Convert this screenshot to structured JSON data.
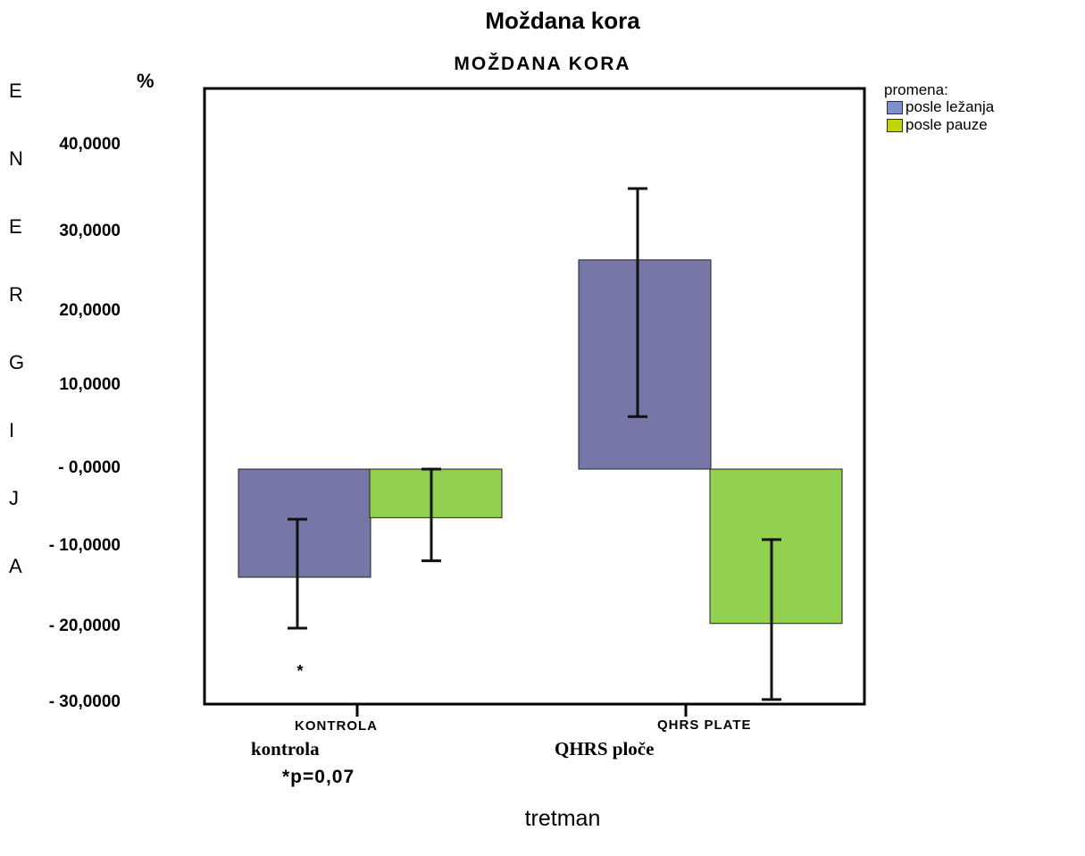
{
  "chart_data": {
    "type": "bar",
    "title": "Moždana kora",
    "subtitle": "MOŽDANA KORA",
    "ylabel_vertical": [
      "E",
      "N",
      "E",
      "R",
      "G",
      "I",
      "J",
      "A"
    ],
    "yunit": "%",
    "xlabel": "tretman",
    "ylim": [
      -30,
      48
    ],
    "yticks": [
      {
        "value": 40,
        "label": "40,0000"
      },
      {
        "value": 30,
        "label": "30,0000"
      },
      {
        "value": 20,
        "label": "20,0000"
      },
      {
        "value": 10,
        "label": "10,0000"
      },
      {
        "value": 0,
        "label": "- 0,0000"
      },
      {
        "value": -10,
        "label": "- 10,0000"
      },
      {
        "value": -20,
        "label": "- 20,0000"
      },
      {
        "value": -30,
        "label": "- 30,0000"
      }
    ],
    "categories": [
      "KONTROLA",
      "QHRS PLATE"
    ],
    "category_sublabels": [
      "kontrola",
      "QHRS ploče"
    ],
    "legend_title": "promena:",
    "legend_swatch_colors": [
      "#7b8fd1",
      "#c3d400"
    ],
    "series": [
      {
        "name": "posle ležanja",
        "color": "#7677a6",
        "values": [
          -13.8,
          26.7
        ],
        "error_low": [
          -20.3,
          6.7
        ],
        "error_high": [
          -6.4,
          35.8
        ]
      },
      {
        "name": "posle pauze",
        "color": "#92d050",
        "values": [
          -6.2,
          -19.7
        ],
        "error_low": [
          -11.7,
          -29.4
        ],
        "error_high": [
          0.0,
          -9.0
        ]
      }
    ],
    "annotations": {
      "marker": "*",
      "note": "*p=0,07"
    }
  }
}
